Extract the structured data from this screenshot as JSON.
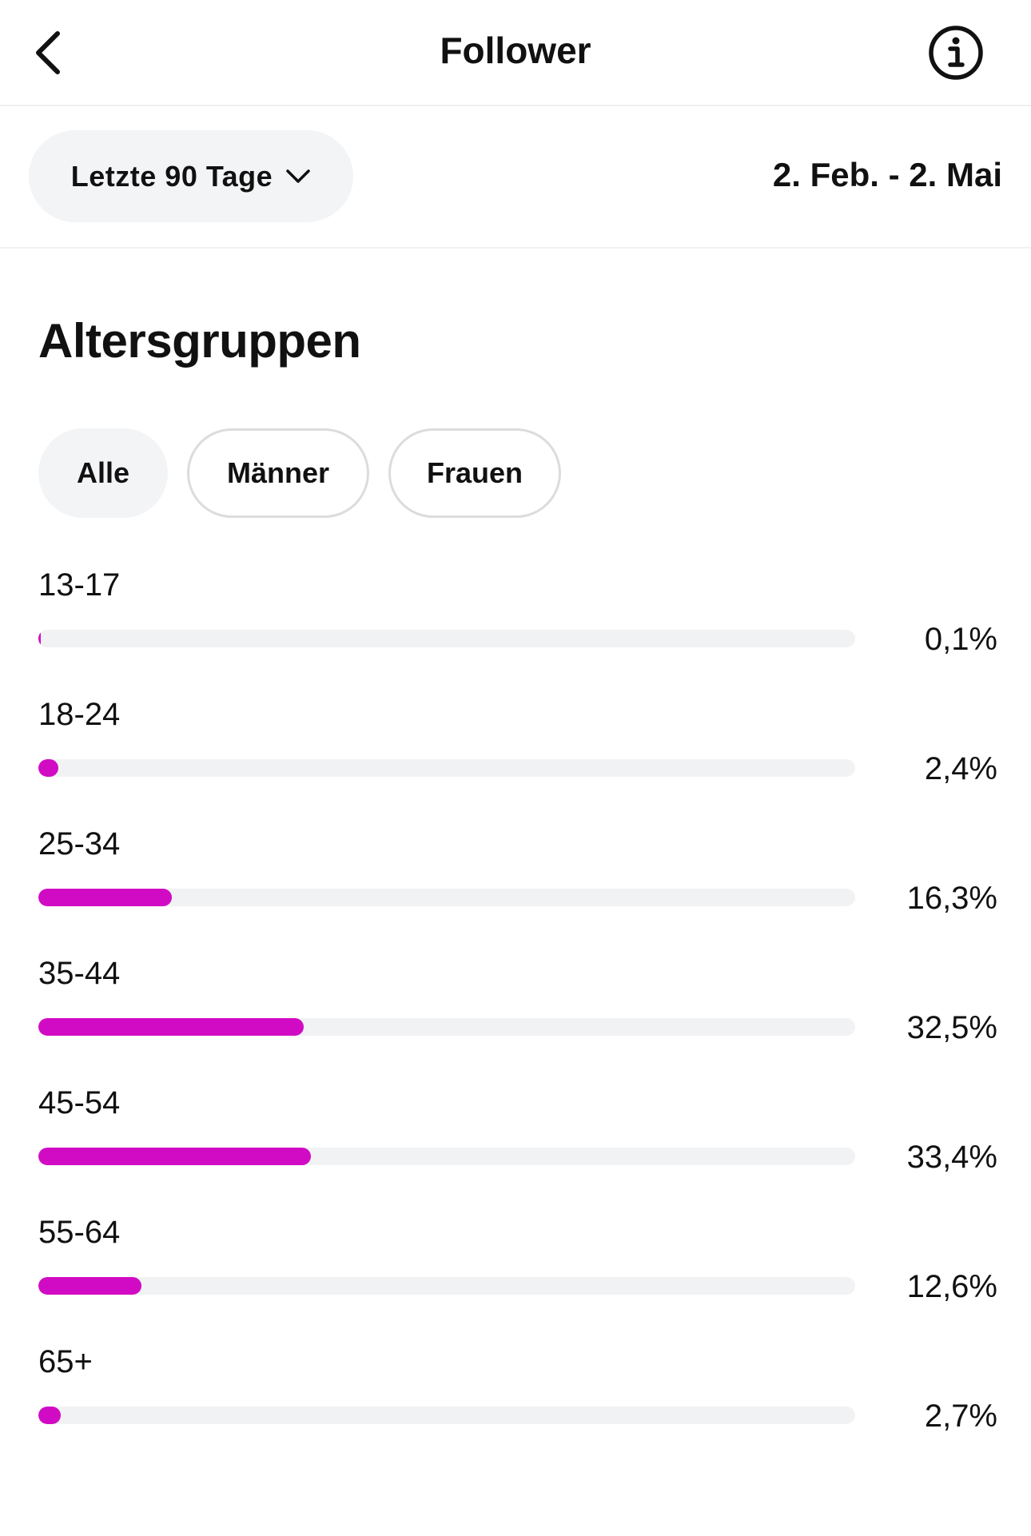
{
  "header": {
    "title": "Follower",
    "back_icon": "chevron-left-icon",
    "info_icon": "info-icon"
  },
  "date_row": {
    "range_label": "Letzte 90 Tage",
    "range_icon": "chevron-down-icon",
    "date_range": "2. Feb. - 2. Mai"
  },
  "section": {
    "title": "Altersgruppen",
    "filters": [
      {
        "label": "Alle",
        "active": true
      },
      {
        "label": "Männer",
        "active": false
      },
      {
        "label": "Frauen",
        "active": false
      }
    ]
  },
  "age_groups": [
    {
      "label": "13-17",
      "value": 0.1,
      "display": "0,1%"
    },
    {
      "label": "18-24",
      "value": 2.4,
      "display": "2,4%"
    },
    {
      "label": "25-34",
      "value": 16.3,
      "display": "16,3%"
    },
    {
      "label": "35-44",
      "value": 32.5,
      "display": "32,5%"
    },
    {
      "label": "45-54",
      "value": 33.4,
      "display": "33,4%"
    },
    {
      "label": "55-64",
      "value": 12.6,
      "display": "12,6%"
    },
    {
      "label": "65+",
      "value": 2.7,
      "display": "2,7%"
    }
  ],
  "colors": {
    "bar_fill": "#d10bc4",
    "bar_track": "#f1f2f4",
    "chip_active": "#f3f4f6",
    "text": "#111111"
  }
}
